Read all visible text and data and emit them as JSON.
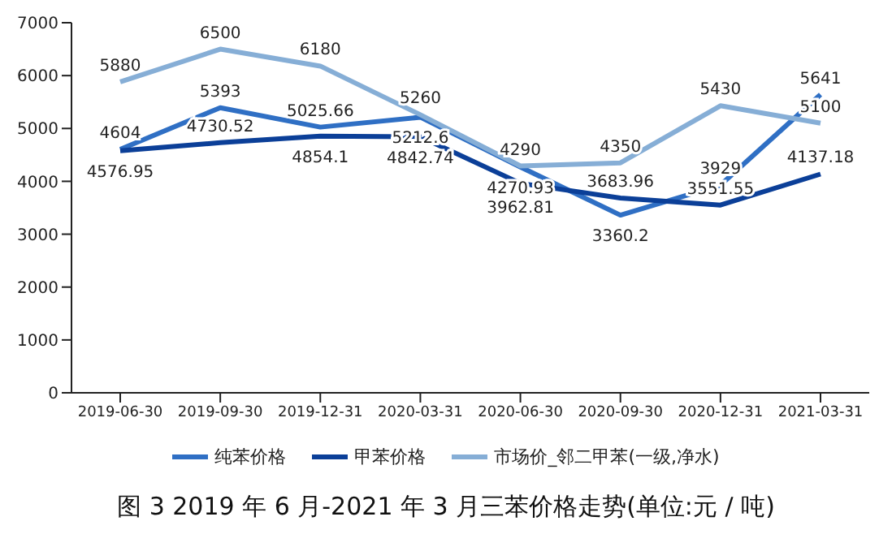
{
  "chart_data": {
    "type": "line",
    "title": "图 3 2019 年 6 月-2021 年 3 月三苯价格走势(单位:元 / 吨)",
    "categories": [
      "2019-06-30",
      "2019-09-30",
      "2019-12-31",
      "2020-03-31",
      "2020-06-30",
      "2020-09-30",
      "2020-12-31",
      "2021-03-31"
    ],
    "series": [
      {
        "name": "纯苯价格",
        "color": "#2f6fc4",
        "values": [
          4604,
          5393,
          5025.66,
          5212.6,
          4270.93,
          3360.2,
          3929,
          5641
        ]
      },
      {
        "name": "甲苯价格",
        "color": "#0b3f98",
        "values": [
          4576.95,
          4730.52,
          4854.1,
          4842.74,
          3962.81,
          3683.96,
          3551.55,
          4137.18
        ]
      },
      {
        "name": "市场价_邻二甲苯(一级,净水)",
        "color": "#86aed6",
        "values": [
          5880,
          6500,
          6180,
          5260,
          4290,
          4350,
          5430,
          5100
        ]
      }
    ],
    "ylim": [
      0,
      7000
    ],
    "yticks": [
      0,
      1000,
      2000,
      3000,
      4000,
      5000,
      6000,
      7000
    ],
    "data_labels": true,
    "legend": "bottom",
    "grid": false,
    "marker": "none",
    "line_style": "solid"
  }
}
